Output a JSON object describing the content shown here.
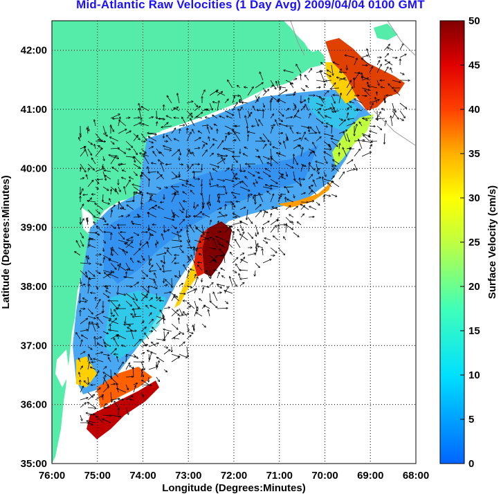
{
  "title": "Mid-Atlantic Raw Velocities (1 Day Avg) 2009/04/04 0100 GMT",
  "colors": {
    "land": "#55ecaa",
    "ocean": "#ffffff",
    "title": "#1a10ff",
    "grid": "#000000"
  },
  "map": {
    "xlabel": "Longitude (Degrees:Minutes)",
    "ylabel": "Latitude (Degrees:Minutes)",
    "lon_ticks": [
      "76:00",
      "75:00",
      "74:00",
      "73:00",
      "72:00",
      "71:00",
      "70:00",
      "69:00",
      "68:00"
    ],
    "lat_ticks": [
      "35:00",
      "36:00",
      "37:00",
      "38:00",
      "39:00",
      "40:00",
      "41:00",
      "42:00"
    ],
    "lon_range": [
      -76,
      -68
    ],
    "lat_range": [
      35,
      42.5
    ]
  },
  "colorbar": {
    "label": "Surface Velocity (cm/s)",
    "ticks": [
      "0",
      "5",
      "10",
      "15",
      "20",
      "25",
      "30",
      "35",
      "40",
      "45",
      "50"
    ],
    "range": [
      0,
      50
    ],
    "colormap": "jet"
  },
  "chart_data": {
    "type": "heatmap",
    "title": "Mid-Atlantic Raw Velocities (1 Day Avg) 2009/04/04 0100 GMT",
    "xlabel": "Longitude (Degrees:Minutes)",
    "ylabel": "Latitude (Degrees:Minutes)",
    "xlim": [
      -76,
      -68
    ],
    "ylim": [
      35,
      42.5
    ],
    "colorbar_label": "Surface Velocity (cm/s)",
    "colorbar_range": [
      0,
      50
    ],
    "grid": true
  }
}
